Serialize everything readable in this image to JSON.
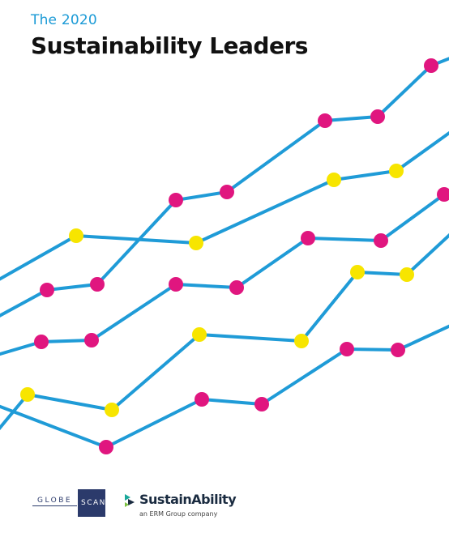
{
  "header": {
    "subtitle": "The 2020",
    "title": "Sustainability Leaders"
  },
  "colors": {
    "line": "#1f9bd7",
    "magenta_marker": "#e0167f",
    "yellow_marker": "#f7e500",
    "subtitle": "#1a9ad6",
    "title": "#111111",
    "globescan_navy": "#2b3a6b"
  },
  "footer": {
    "globescan_left": "GLOBE",
    "globescan_right": "SCAN",
    "sustainability_name": "SustainAbility",
    "sustainability_tagline": "an ERM Group company"
  }
}
